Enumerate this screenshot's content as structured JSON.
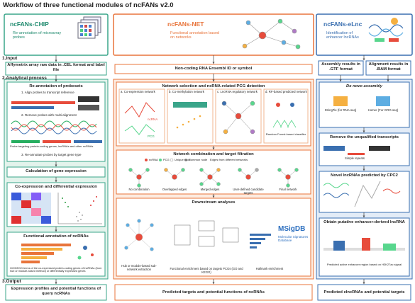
{
  "title": "Workflow of three functional modules of ncFANs v2.0",
  "sections": [
    "1.Input",
    "2.Analytical process",
    "3.Output"
  ],
  "chip": {
    "name": "ncFANs-CHIP",
    "description": "Re-annotation of microarray probes",
    "input": "Affymetrix array raw data in .CEL format and label file",
    "reannotation": {
      "title": "Re-annotation of probesets",
      "steps": [
        "1. Align probes to transcript reference",
        "2. Remove probes with multi-alignment",
        "3. Re-annotate probes by target gene type"
      ],
      "note": "Probe targeting protein-coding genes, lncRNAs and other ncRNAs"
    },
    "calculation": "Calculation of gene expression",
    "coexpression": "Co-expression and differential expression",
    "functional": {
      "title": "Functional annotation of ncRNAs",
      "note": "GO/KEGG terms of the co-expressed protein-coding genes of lncRNAs (from hub or module-based method) or differentially expressed genes"
    },
    "output": "Expression profiles and potential functions of query ncRNAs"
  },
  "net": {
    "name": "ncFANs-NET",
    "description": "Functional annotation based on networks",
    "input": "Non-coding RNA Ensembl ID or symbol",
    "selection": {
      "title": "Network selection and ncRNA-related PCG detection",
      "panels": [
        "a. Co-expression network",
        "b. Co-methylation network",
        "c. LncRNA regulatory network",
        "d. RF-based predicted network"
      ],
      "labels": [
        "ncRNA",
        "PCG",
        "Random Forest-based classifier"
      ]
    },
    "combination": {
      "title": "Network combination and target filtration",
      "legend": [
        "ncRNA",
        "PCG",
        "Unique node",
        "Common node",
        "Edges from different networks"
      ],
      "steps": [
        "No combination",
        "Overlapped edges",
        "Merged edges",
        "User-defined candidate targets",
        "Final network"
      ]
    },
    "downstream": {
      "title": "Downstream analyses",
      "items": [
        "Hub or module-based sub-network extraction",
        "Functional enrichment based on targets PCGs (GO and KEGG)",
        "Hallmark enrichment"
      ],
      "msigdb": "MSigDB",
      "msigdb_full": "Molecular Signatures Database"
    },
    "output": "Predicted targets and potential functions of ncRNAs"
  },
  "elnc": {
    "name": "ncFANs-eLnc",
    "description": "Identification of enhancer lncRNAs",
    "inputs": [
      "Assembly results in .GTF format",
      "Alignment results in .BAM format"
    ],
    "denovo": {
      "title": "De novo assembly",
      "tools": [
        "StringTie (for RNA-seq)",
        "Homer (For GRO-seq)"
      ]
    },
    "remove": {
      "title": "Remove the unqualified transcripts",
      "note": "Simple repeats"
    },
    "novel": "Novel lncRNAs predicted by CPC2",
    "obtain": {
      "title": "Obtain putative enhancer-derived lncRNA",
      "note": "Predicted active enhancer region based on H3K27ac signal"
    },
    "output": "Predicted elncRNAs and potential targets"
  }
}
